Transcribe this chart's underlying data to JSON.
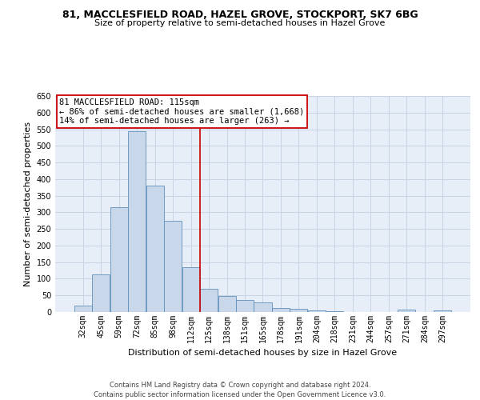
{
  "title_line1": "81, MACCLESFIELD ROAD, HAZEL GROVE, STOCKPORT, SK7 6BG",
  "title_line2": "Size of property relative to semi-detached houses in Hazel Grove",
  "xlabel": "Distribution of semi-detached houses by size in Hazel Grove",
  "ylabel": "Number of semi-detached properties",
  "footer_line1": "Contains HM Land Registry data © Crown copyright and database right 2024.",
  "footer_line2": "Contains public sector information licensed under the Open Government Licence v3.0.",
  "annotation_title": "81 MACCLESFIELD ROAD: 115sqm",
  "annotation_line2": "← 86% of semi-detached houses are smaller (1,668)",
  "annotation_line3": "14% of semi-detached houses are larger (263) →",
  "bar_color": "#c8d8ea",
  "bar_edgecolor": "#6090bb",
  "vline_color": "#cc0000",
  "categories": [
    "32sqm",
    "45sqm",
    "59sqm",
    "72sqm",
    "85sqm",
    "98sqm",
    "112sqm",
    "125sqm",
    "138sqm",
    "151sqm",
    "165sqm",
    "178sqm",
    "191sqm",
    "204sqm",
    "218sqm",
    "231sqm",
    "244sqm",
    "257sqm",
    "271sqm",
    "284sqm",
    "297sqm"
  ],
  "values": [
    20,
    113,
    315,
    545,
    380,
    275,
    135,
    70,
    48,
    35,
    30,
    13,
    9,
    5,
    2,
    1,
    0,
    0,
    7,
    0,
    5
  ],
  "vline_position": 6.5,
  "ylim": [
    0,
    650
  ],
  "yticks": [
    0,
    50,
    100,
    150,
    200,
    250,
    300,
    350,
    400,
    450,
    500,
    550,
    600,
    650
  ],
  "grid_color": "#c8d4e4",
  "background_color": "#e8eef8",
  "annotation_fontsize": 7.5,
  "title1_fontsize": 9,
  "title2_fontsize": 8,
  "ylabel_fontsize": 8,
  "xlabel_fontsize": 8,
  "footer_fontsize": 6,
  "tick_fontsize": 7
}
